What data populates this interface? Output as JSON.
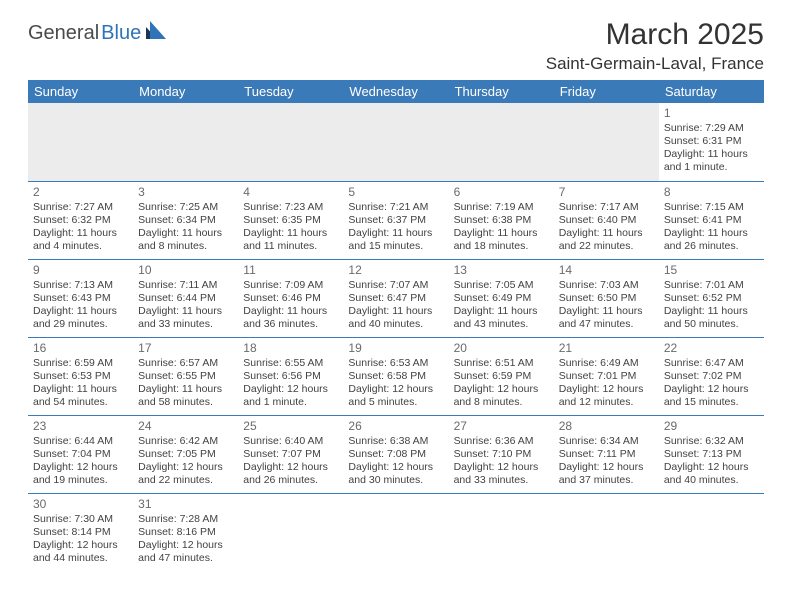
{
  "brand": {
    "general": "General",
    "blue": "Blue"
  },
  "title": "March 2025",
  "location": "Saint-Germain-Laval, France",
  "weekdays": [
    "Sunday",
    "Monday",
    "Tuesday",
    "Wednesday",
    "Thursday",
    "Friday",
    "Saturday"
  ],
  "header_bg": "#3a7ab8",
  "weeks": [
    [
      null,
      null,
      null,
      null,
      null,
      null,
      {
        "n": "1",
        "sr": "7:29 AM",
        "ss": "6:31 PM",
        "dl": "11 hours and 1 minute."
      }
    ],
    [
      {
        "n": "2",
        "sr": "7:27 AM",
        "ss": "6:32 PM",
        "dl": "11 hours and 4 minutes."
      },
      {
        "n": "3",
        "sr": "7:25 AM",
        "ss": "6:34 PM",
        "dl": "11 hours and 8 minutes."
      },
      {
        "n": "4",
        "sr": "7:23 AM",
        "ss": "6:35 PM",
        "dl": "11 hours and 11 minutes."
      },
      {
        "n": "5",
        "sr": "7:21 AM",
        "ss": "6:37 PM",
        "dl": "11 hours and 15 minutes."
      },
      {
        "n": "6",
        "sr": "7:19 AM",
        "ss": "6:38 PM",
        "dl": "11 hours and 18 minutes."
      },
      {
        "n": "7",
        "sr": "7:17 AM",
        "ss": "6:40 PM",
        "dl": "11 hours and 22 minutes."
      },
      {
        "n": "8",
        "sr": "7:15 AM",
        "ss": "6:41 PM",
        "dl": "11 hours and 26 minutes."
      }
    ],
    [
      {
        "n": "9",
        "sr": "7:13 AM",
        "ss": "6:43 PM",
        "dl": "11 hours and 29 minutes."
      },
      {
        "n": "10",
        "sr": "7:11 AM",
        "ss": "6:44 PM",
        "dl": "11 hours and 33 minutes."
      },
      {
        "n": "11",
        "sr": "7:09 AM",
        "ss": "6:46 PM",
        "dl": "11 hours and 36 minutes."
      },
      {
        "n": "12",
        "sr": "7:07 AM",
        "ss": "6:47 PM",
        "dl": "11 hours and 40 minutes."
      },
      {
        "n": "13",
        "sr": "7:05 AM",
        "ss": "6:49 PM",
        "dl": "11 hours and 43 minutes."
      },
      {
        "n": "14",
        "sr": "7:03 AM",
        "ss": "6:50 PM",
        "dl": "11 hours and 47 minutes."
      },
      {
        "n": "15",
        "sr": "7:01 AM",
        "ss": "6:52 PM",
        "dl": "11 hours and 50 minutes."
      }
    ],
    [
      {
        "n": "16",
        "sr": "6:59 AM",
        "ss": "6:53 PM",
        "dl": "11 hours and 54 minutes."
      },
      {
        "n": "17",
        "sr": "6:57 AM",
        "ss": "6:55 PM",
        "dl": "11 hours and 58 minutes."
      },
      {
        "n": "18",
        "sr": "6:55 AM",
        "ss": "6:56 PM",
        "dl": "12 hours and 1 minute."
      },
      {
        "n": "19",
        "sr": "6:53 AM",
        "ss": "6:58 PM",
        "dl": "12 hours and 5 minutes."
      },
      {
        "n": "20",
        "sr": "6:51 AM",
        "ss": "6:59 PM",
        "dl": "12 hours and 8 minutes."
      },
      {
        "n": "21",
        "sr": "6:49 AM",
        "ss": "7:01 PM",
        "dl": "12 hours and 12 minutes."
      },
      {
        "n": "22",
        "sr": "6:47 AM",
        "ss": "7:02 PM",
        "dl": "12 hours and 15 minutes."
      }
    ],
    [
      {
        "n": "23",
        "sr": "6:44 AM",
        "ss": "7:04 PM",
        "dl": "12 hours and 19 minutes."
      },
      {
        "n": "24",
        "sr": "6:42 AM",
        "ss": "7:05 PM",
        "dl": "12 hours and 22 minutes."
      },
      {
        "n": "25",
        "sr": "6:40 AM",
        "ss": "7:07 PM",
        "dl": "12 hours and 26 minutes."
      },
      {
        "n": "26",
        "sr": "6:38 AM",
        "ss": "7:08 PM",
        "dl": "12 hours and 30 minutes."
      },
      {
        "n": "27",
        "sr": "6:36 AM",
        "ss": "7:10 PM",
        "dl": "12 hours and 33 minutes."
      },
      {
        "n": "28",
        "sr": "6:34 AM",
        "ss": "7:11 PM",
        "dl": "12 hours and 37 minutes."
      },
      {
        "n": "29",
        "sr": "6:32 AM",
        "ss": "7:13 PM",
        "dl": "12 hours and 40 minutes."
      }
    ],
    [
      {
        "n": "30",
        "sr": "7:30 AM",
        "ss": "8:14 PM",
        "dl": "12 hours and 44 minutes."
      },
      {
        "n": "31",
        "sr": "7:28 AM",
        "ss": "8:16 PM",
        "dl": "12 hours and 47 minutes."
      },
      null,
      null,
      null,
      null,
      null
    ]
  ]
}
